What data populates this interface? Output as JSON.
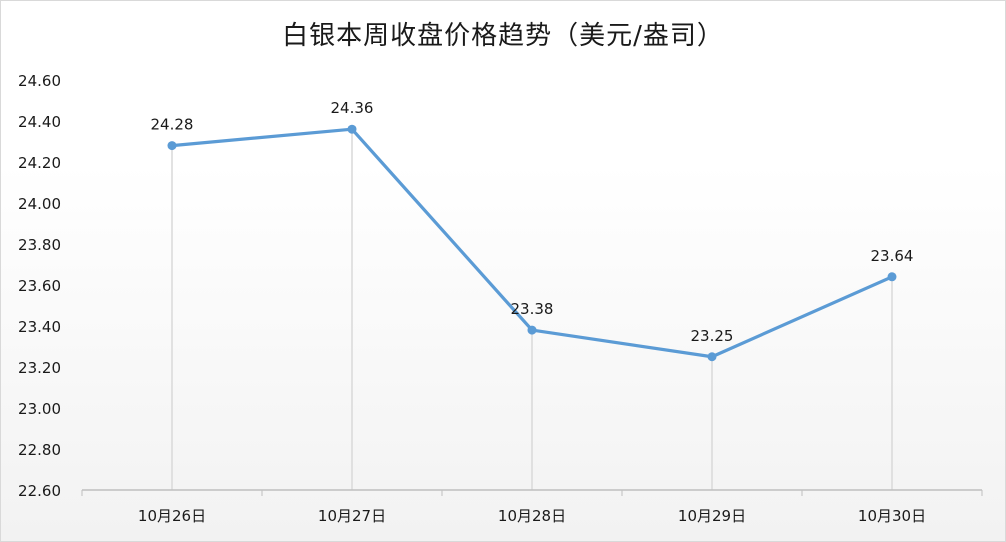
{
  "chart_data": {
    "type": "line",
    "title": "白银本周收盘价格趋势（美元/盎司）",
    "categories": [
      "10月26日",
      "10月27日",
      "10月28日",
      "10月29日",
      "10月30日"
    ],
    "series": [
      {
        "values": [
          24.28,
          24.36,
          23.38,
          23.25,
          23.64
        ],
        "color": "#5b9bd5"
      }
    ],
    "data_labels": [
      "24.28",
      "24.36",
      "23.38",
      "23.25",
      "23.64"
    ],
    "ylim": [
      22.6,
      24.6
    ],
    "y_ticks": [
      "22.60",
      "22.80",
      "23.00",
      "23.20",
      "23.40",
      "23.60",
      "23.80",
      "24.00",
      "24.20",
      "24.40",
      "24.60"
    ],
    "xlabel": "",
    "ylabel": "",
    "grid": false,
    "drop_lines": true,
    "legend": "none"
  }
}
